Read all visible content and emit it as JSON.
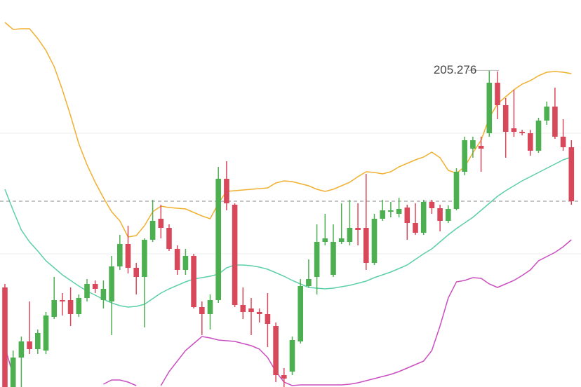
{
  "chart_data": {
    "type": "candlestick",
    "ylim": [
      200.76,
      206.28
    ],
    "grid_lines": [
      204.38,
      202.66
    ],
    "last_price": 203.41,
    "up_color": "#4caf50",
    "down_color": "#d9475a",
    "open": [
      202.18,
      200.68,
      201.18,
      201.41,
      201.3,
      201.28,
      201.76,
      202.0,
      202.0,
      201.8,
      202.03,
      202.23,
      202.0,
      201.98,
      202.48,
      202.8,
      202.46,
      202.33,
      202.86,
      203.16,
      203.03,
      202.73,
      202.43,
      202.63,
      201.9,
      201.8,
      202.0,
      203.73,
      203.36,
      201.93,
      201.88,
      201.83,
      201.8,
      201.63,
      200.93,
      200.98,
      201.41,
      202.2,
      202.33,
      202.83,
      202.36,
      202.83,
      202.83,
      203.03,
      203.03,
      202.53,
      203.16,
      203.26,
      203.23,
      203.32,
      203.1,
      202.96,
      203.4,
      203.31,
      203.13,
      203.3,
      203.83,
      204.16,
      204.2,
      204.38,
      205.1,
      204.78,
      204.45,
      204.4,
      204.38,
      204.13,
      204.56,
      204.76,
      204.33,
      204.18
    ],
    "high": [
      202.23,
      201.28,
      201.48,
      201.98,
      201.58,
      201.83,
      202.33,
      202.1,
      202.18,
      202.08,
      202.3,
      202.28,
      202.28,
      202.63,
      202.93,
      203.06,
      202.53,
      202.88,
      203.43,
      203.36,
      203.08,
      202.78,
      202.73,
      202.66,
      201.98,
      202.08,
      203.9,
      203.98,
      203.38,
      202.18,
      202.03,
      201.88,
      202.1,
      201.68,
      201.03,
      201.48,
      202.3,
      202.58,
      203.08,
      203.23,
      203.08,
      203.38,
      203.43,
      203.38,
      203.8,
      203.23,
      203.43,
      203.4,
      203.46,
      203.36,
      203.38,
      203.43,
      203.43,
      203.36,
      203.35,
      203.88,
      204.33,
      204.33,
      204.33,
      205.276,
      205.26,
      204.88,
      205.0,
      204.43,
      204.43,
      204.6,
      204.83,
      205.03,
      204.58,
      204.28
    ],
    "low": [
      200.63,
      200.58,
      200.76,
      201.23,
      201.23,
      201.23,
      201.73,
      201.78,
      201.63,
      201.76,
      201.98,
      202.1,
      201.88,
      201.5,
      202.43,
      202.38,
      202.08,
      201.61,
      202.83,
      202.88,
      202.7,
      202.36,
      202.36,
      201.88,
      201.5,
      201.58,
      201.96,
      203.28,
      201.9,
      201.73,
      201.5,
      201.68,
      201.33,
      200.83,
      200.7,
      200.93,
      201.38,
      202.18,
      202.08,
      202.78,
      202.33,
      202.8,
      202.78,
      202.78,
      202.43,
      202.5,
      203.13,
      203.18,
      203.18,
      202.86,
      202.93,
      202.93,
      203.23,
      202.98,
      203.1,
      203.28,
      203.78,
      204.03,
      203.83,
      204.33,
      204.58,
      204.03,
      204.33,
      204.35,
      204.06,
      204.1,
      204.5,
      204.3,
      204.13,
      203.36
    ],
    "close": [
      200.68,
      201.18,
      201.41,
      201.3,
      201.53,
      201.78,
      202.0,
      201.98,
      201.8,
      202.03,
      202.23,
      202.16,
      202.16,
      202.48,
      202.8,
      202.46,
      202.33,
      202.86,
      203.13,
      203.03,
      202.73,
      202.43,
      202.63,
      201.9,
      201.8,
      202.0,
      203.73,
      203.38,
      201.93,
      201.83,
      201.83,
      201.8,
      201.66,
      200.93,
      200.88,
      201.43,
      202.2,
      202.3,
      202.83,
      202.88,
      202.83,
      202.88,
      203.03,
      203.0,
      202.53,
      203.16,
      203.28,
      203.28,
      203.3,
      203.1,
      202.96,
      203.4,
      203.31,
      203.13,
      203.3,
      203.83,
      204.28,
      204.28,
      204.16,
      205.1,
      204.78,
      204.4,
      204.4,
      204.38,
      204.13,
      204.56,
      204.76,
      204.33,
      204.18,
      203.41
    ],
    "overlays": [
      {
        "color": "#f0b030",
        "values": [
          205.96,
          205.86,
          205.87,
          205.87,
          205.73,
          205.56,
          205.33,
          205.0,
          204.63,
          204.23,
          203.93,
          203.68,
          203.46,
          203.26,
          203.13,
          202.9,
          202.92,
          203.06,
          203.26,
          203.34,
          203.32,
          203.31,
          203.3,
          203.25,
          203.2,
          203.16,
          203.38,
          203.55,
          203.56,
          203.57,
          203.58,
          203.59,
          203.6,
          203.67,
          203.7,
          203.69,
          203.66,
          203.63,
          203.58,
          203.55,
          203.58,
          203.63,
          203.68,
          203.76,
          203.83,
          203.82,
          203.8,
          203.83,
          203.9,
          203.95,
          204.0,
          204.04,
          204.11,
          204.03,
          203.85,
          203.81,
          203.9,
          204.1,
          204.28,
          204.6,
          204.8,
          204.9,
          205.0,
          205.08,
          205.13,
          205.2,
          205.25,
          205.26,
          205.25,
          205.23
        ]
      },
      {
        "color": "#5ccfa8",
        "values": [
          203.58,
          203.28,
          203.0,
          202.83,
          202.7,
          202.56,
          202.46,
          202.36,
          202.28,
          202.2,
          202.13,
          202.07,
          202.01,
          201.96,
          201.92,
          201.9,
          201.91,
          201.94,
          202.02,
          202.1,
          202.16,
          202.21,
          202.26,
          202.3,
          202.32,
          202.34,
          202.37,
          202.46,
          202.5,
          202.5,
          202.49,
          202.47,
          202.44,
          202.39,
          202.34,
          202.28,
          202.23,
          202.18,
          202.17,
          202.16,
          202.17,
          202.19,
          202.21,
          202.24,
          202.27,
          202.32,
          202.36,
          202.4,
          202.45,
          202.5,
          202.58,
          202.66,
          202.73,
          202.83,
          202.93,
          203.02,
          203.1,
          203.18,
          203.28,
          203.38,
          203.48,
          203.56,
          203.63,
          203.7,
          203.76,
          203.82,
          203.88,
          203.94,
          204.0,
          204.04
        ]
      },
      {
        "color": "#c94fc0",
        "values": [
          201.33,
          200.93,
          null,
          null,
          null,
          null,
          null,
          null,
          null,
          null,
          null,
          null,
          200.8,
          200.86,
          200.86,
          200.83,
          200.78,
          null,
          null,
          200.78,
          200.98,
          201.13,
          201.28,
          201.38,
          201.48,
          201.46,
          201.43,
          201.42,
          201.41,
          201.38,
          201.35,
          201.3,
          201.18,
          200.98,
          200.83,
          200.78,
          200.79,
          200.79,
          200.79,
          200.79,
          200.79,
          200.79,
          200.8,
          200.82,
          200.85,
          200.88,
          200.91,
          200.94,
          200.98,
          201.03,
          201.08,
          201.13,
          201.28,
          201.63,
          202.03,
          202.26,
          202.28,
          202.32,
          202.31,
          202.23,
          202.18,
          202.23,
          202.28,
          202.35,
          202.43,
          202.56,
          202.62,
          202.68,
          202.76,
          202.86
        ]
      }
    ]
  }
}
